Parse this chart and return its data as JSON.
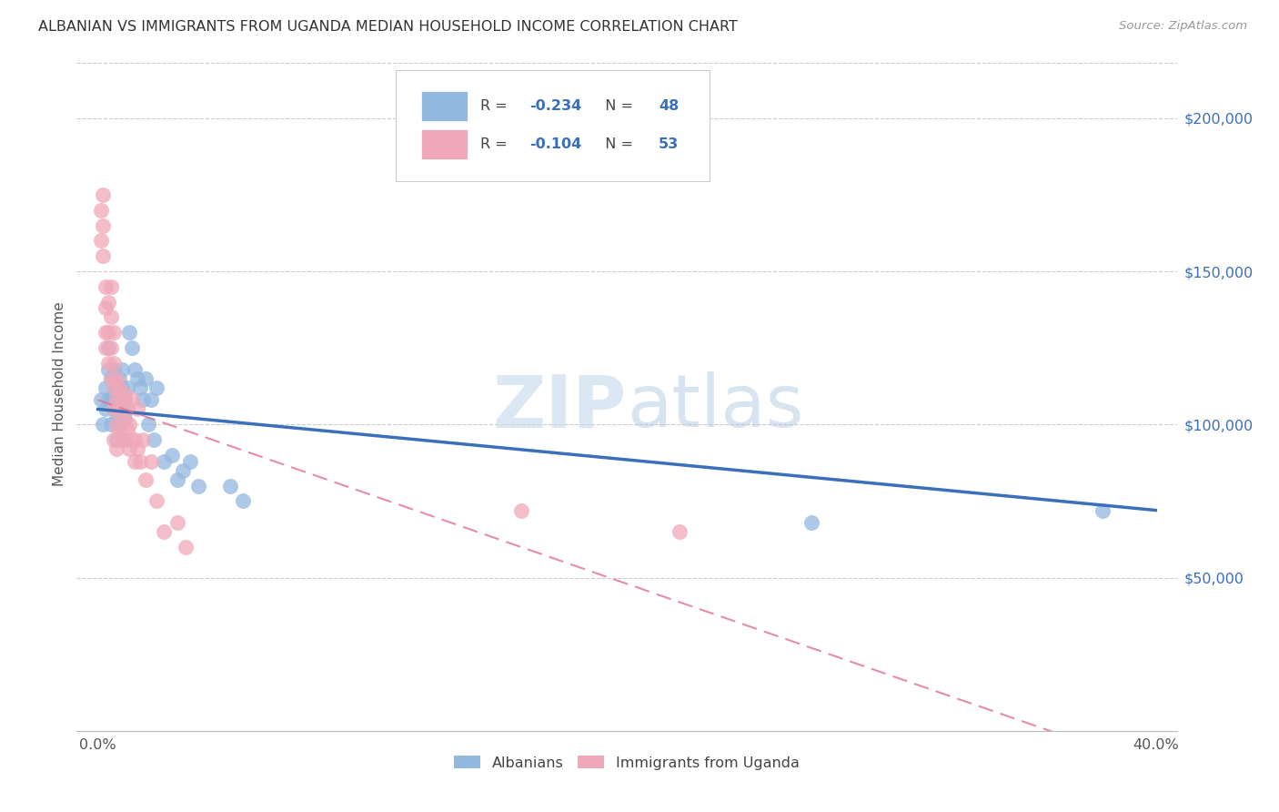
{
  "title": "ALBANIAN VS IMMIGRANTS FROM UGANDA MEDIAN HOUSEHOLD INCOME CORRELATION CHART",
  "source": "Source: ZipAtlas.com",
  "ylabel": "Median Household Income",
  "legend_label1": "Albanians",
  "legend_label2": "Immigrants from Uganda",
  "R1": -0.234,
  "N1": 48,
  "R2": -0.104,
  "N2": 53,
  "watermark_zip": "ZIP",
  "watermark_atlas": "atlas",
  "blue_scatter": "#93b8e0",
  "pink_scatter": "#f0a8b8",
  "blue_line_color": "#3a6fba",
  "pink_line_color": "#e07090",
  "blue_text_color": "#3a6fba",
  "title_color": "#333333",
  "source_color": "#999999",
  "grid_color": "#cccccc",
  "albanians_x": [
    0.001,
    0.002,
    0.003,
    0.003,
    0.004,
    0.004,
    0.004,
    0.005,
    0.005,
    0.005,
    0.006,
    0.006,
    0.006,
    0.007,
    0.007,
    0.007,
    0.007,
    0.008,
    0.008,
    0.008,
    0.009,
    0.009,
    0.009,
    0.01,
    0.01,
    0.01,
    0.011,
    0.012,
    0.013,
    0.014,
    0.015,
    0.016,
    0.017,
    0.018,
    0.019,
    0.02,
    0.021,
    0.022,
    0.025,
    0.028,
    0.03,
    0.032,
    0.035,
    0.038,
    0.05,
    0.055,
    0.27,
    0.38
  ],
  "albanians_y": [
    108000,
    100000,
    112000,
    105000,
    125000,
    118000,
    108000,
    115000,
    108000,
    100000,
    118000,
    110000,
    105000,
    112000,
    108000,
    102000,
    95000,
    115000,
    108000,
    100000,
    118000,
    112000,
    105000,
    108000,
    102000,
    95000,
    112000,
    130000,
    125000,
    118000,
    115000,
    112000,
    108000,
    115000,
    100000,
    108000,
    95000,
    112000,
    88000,
    90000,
    82000,
    85000,
    88000,
    80000,
    80000,
    75000,
    68000,
    72000
  ],
  "uganda_x": [
    0.001,
    0.001,
    0.002,
    0.002,
    0.002,
    0.003,
    0.003,
    0.003,
    0.003,
    0.004,
    0.004,
    0.004,
    0.005,
    0.005,
    0.005,
    0.005,
    0.006,
    0.006,
    0.006,
    0.006,
    0.006,
    0.007,
    0.007,
    0.007,
    0.007,
    0.008,
    0.008,
    0.008,
    0.009,
    0.009,
    0.01,
    0.01,
    0.01,
    0.011,
    0.011,
    0.012,
    0.012,
    0.013,
    0.013,
    0.014,
    0.014,
    0.015,
    0.015,
    0.016,
    0.017,
    0.018,
    0.02,
    0.022,
    0.025,
    0.03,
    0.033,
    0.16,
    0.22
  ],
  "uganda_y": [
    170000,
    160000,
    175000,
    165000,
    155000,
    145000,
    138000,
    130000,
    125000,
    140000,
    130000,
    120000,
    145000,
    135000,
    125000,
    115000,
    130000,
    120000,
    112000,
    105000,
    95000,
    115000,
    108000,
    100000,
    92000,
    112000,
    105000,
    98000,
    108000,
    95000,
    110000,
    102000,
    95000,
    105000,
    98000,
    100000,
    92000,
    108000,
    95000,
    95000,
    88000,
    105000,
    92000,
    88000,
    95000,
    82000,
    88000,
    75000,
    65000,
    68000,
    60000,
    72000,
    65000
  ],
  "xmin": 0.0,
  "xmax": 0.4,
  "ymin": 0,
  "ymax": 220000,
  "yticks": [
    50000,
    100000,
    150000,
    200000
  ],
  "ytick_labels": [
    "$50,000",
    "$100,000",
    "$150,000",
    "$200,000"
  ]
}
